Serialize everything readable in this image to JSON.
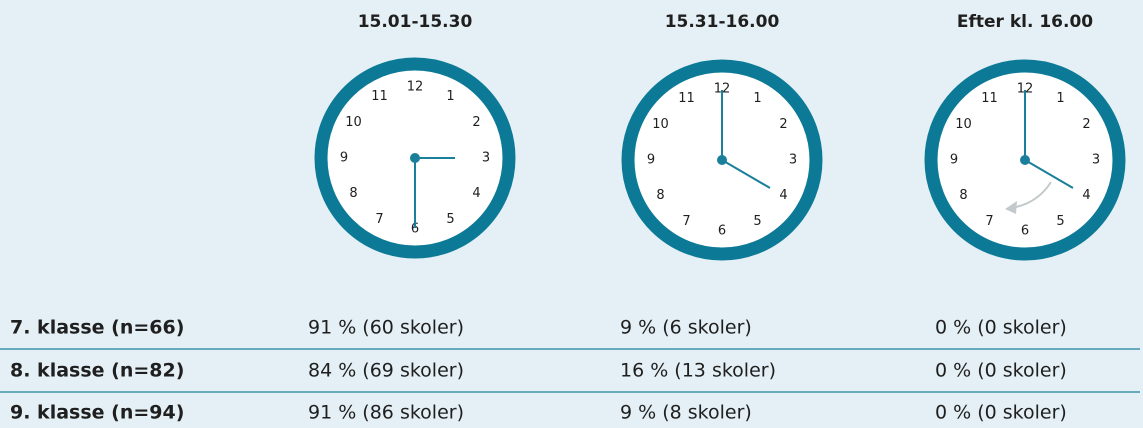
{
  "columns": [
    "15.01-15.30",
    "15.31-16.00",
    "Efter kl. 16.00"
  ],
  "clock_numbers": [
    "12",
    "1",
    "2",
    "3",
    "4",
    "5",
    "6",
    "7",
    "8",
    "9",
    "10",
    "11"
  ],
  "rows": [
    {
      "label": "7. klasse (n=66)",
      "cells": [
        "91 % (60 skoler)",
        "9 % (6 skoler)",
        "0 % (0 skoler)"
      ]
    },
    {
      "label": "8. klasse (n=82)",
      "cells": [
        "84 % (69 skoler)",
        "16 % (13 skoler)",
        "0 % (0 skoler)"
      ]
    },
    {
      "label": "9. klasse (n=94)",
      "cells": [
        "91 % (86 skoler)",
        "9 % (8 skoler)",
        "0 % (0 skoler)"
      ]
    }
  ]
}
